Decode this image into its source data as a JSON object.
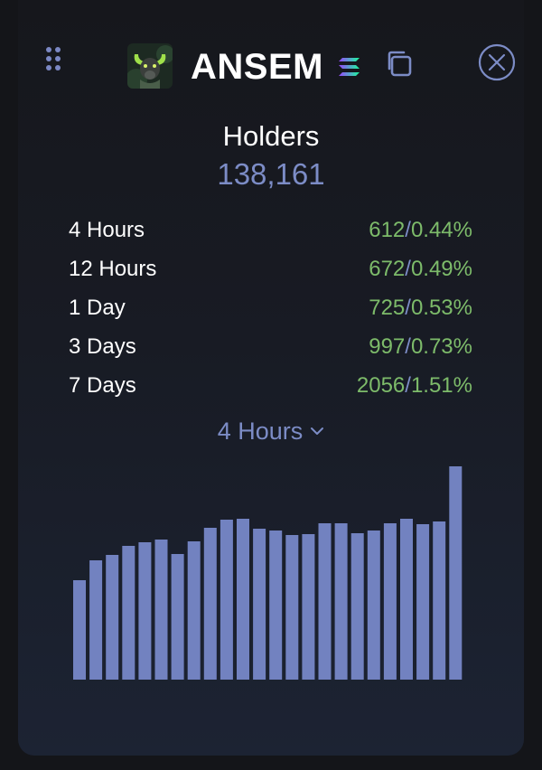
{
  "token": {
    "name": "ANSEM",
    "logo_icon": "bull-logo-icon",
    "chain_icon": "solana-icon"
  },
  "header": {
    "drag_icon": "drag-handle-icon",
    "copy_icon": "copy-icon",
    "close_icon": "close-circle-icon"
  },
  "holders": {
    "title": "Holders",
    "count": "138,161"
  },
  "stats": [
    {
      "label": "4 Hours",
      "count": "612",
      "percent": "0.44%"
    },
    {
      "label": "12 Hours",
      "count": "672",
      "percent": "0.49%"
    },
    {
      "label": "1 Day",
      "count": "725",
      "percent": "0.53%"
    },
    {
      "label": "3 Days",
      "count": "997",
      "percent": "0.73%"
    },
    {
      "label": "7 Days",
      "count": "2056",
      "percent": "1.51%"
    }
  ],
  "period_selector": {
    "selected": "4 Hours"
  },
  "colors": {
    "accent": "#7c8cc6",
    "positive": "#7dbb6a",
    "bar": "#7282c0"
  },
  "chart_data": {
    "type": "bar",
    "values": [
      110,
      132,
      138,
      148,
      152,
      155,
      139,
      153,
      168,
      177,
      178,
      167,
      165,
      160,
      161,
      173,
      173,
      162,
      165,
      173,
      178,
      172,
      175,
      236
    ],
    "ylim": [
      0,
      236
    ]
  }
}
